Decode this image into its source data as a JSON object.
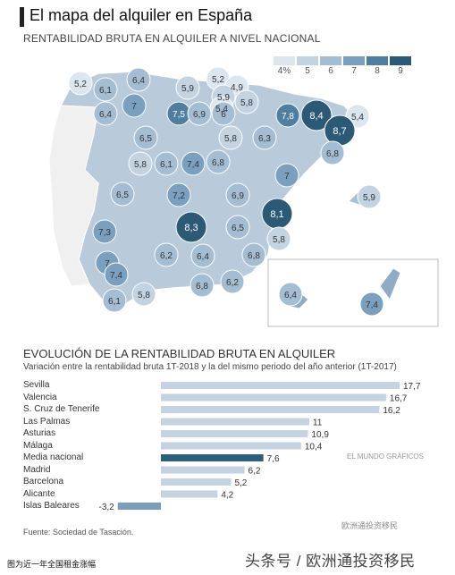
{
  "header": {
    "title": "El mapa del alquiler en España",
    "subtitle": "RENTABILIDAD BRUTA EN ALQUILER A NIVEL NACIONAL"
  },
  "legend": {
    "labels": [
      "4%",
      "5",
      "6",
      "7",
      "8",
      "9"
    ],
    "colors": [
      "#dce6ef",
      "#c3d3e2",
      "#a4bdd3",
      "#7b9fbe",
      "#4f7e9f",
      "#2c5976"
    ]
  },
  "map_values": [
    {
      "label": "5,2",
      "value": 5.2
    },
    {
      "label": "6,1",
      "value": 6.1
    },
    {
      "label": "6,4",
      "value": 6.4
    },
    {
      "label": "5,9",
      "value": 5.9
    },
    {
      "label": "5,2",
      "value": 5.2
    },
    {
      "label": "4,9",
      "value": 4.9
    },
    {
      "label": "5,9",
      "value": 5.9
    },
    {
      "label": "5,4",
      "value": 5.4
    },
    {
      "label": "6,4",
      "value": 6.4
    },
    {
      "label": "7",
      "value": 7.0
    },
    {
      "label": "7,5",
      "value": 7.5
    },
    {
      "label": "6,9",
      "value": 6.9
    },
    {
      "label": "6",
      "value": 6.0
    },
    {
      "label": "5,8",
      "value": 5.8
    },
    {
      "label": "7,8",
      "value": 7.8
    },
    {
      "label": "8,4",
      "value": 8.4
    },
    {
      "label": "5,4",
      "value": 5.4
    },
    {
      "label": "8,7",
      "value": 8.7
    },
    {
      "label": "6,5",
      "value": 6.5
    },
    {
      "label": "5,8",
      "value": 5.8
    },
    {
      "label": "6,3",
      "value": 6.3
    },
    {
      "label": "6,8",
      "value": 6.8
    },
    {
      "label": "5,8",
      "value": 5.8
    },
    {
      "label": "6,1",
      "value": 6.1
    },
    {
      "label": "7,4",
      "value": 7.4
    },
    {
      "label": "6,8",
      "value": 6.8
    },
    {
      "label": "7",
      "value": 7.0
    },
    {
      "label": "6,5",
      "value": 6.5
    },
    {
      "label": "7,2",
      "value": 7.2
    },
    {
      "label": "6,9",
      "value": 6.9
    },
    {
      "label": "8,1",
      "value": 8.1
    },
    {
      "label": "5,9",
      "value": 5.9
    },
    {
      "label": "7,3",
      "value": 7.3
    },
    {
      "label": "8,3",
      "value": 8.3
    },
    {
      "label": "6,5",
      "value": 6.5
    },
    {
      "label": "5,8",
      "value": 5.8
    },
    {
      "label": "7",
      "value": 7.0
    },
    {
      "label": "6,2",
      "value": 6.2
    },
    {
      "label": "6,4",
      "value": 6.4
    },
    {
      "label": "6,8",
      "value": 6.8
    },
    {
      "label": "7,4",
      "value": 7.4
    },
    {
      "label": "5,8",
      "value": 5.8
    },
    {
      "label": "6,8",
      "value": 6.8
    },
    {
      "label": "6,2",
      "value": 6.2
    },
    {
      "label": "6,1",
      "value": 6.1
    },
    {
      "label": "6,4",
      "value": 6.4
    },
    {
      "label": "7,4",
      "value": 7.4
    }
  ],
  "section2": {
    "title": "EVOLUCIÓN DE LA RENTABILIDAD BRUTA EN ALQUILER",
    "subtitle": "Variación entre la rentabilidad bruta 1T-2018 y la del mismo periodo del año anterior (1T-2017)"
  },
  "chart_data": {
    "type": "bar",
    "orientation": "horizontal",
    "categories": [
      "Sevilla",
      "Valencia",
      "S. Cruz de Tenerife",
      "Las Palmas",
      "Asturias",
      "Málaga",
      "Media nacional",
      "Madrid",
      "Barcelona",
      "Alicante",
      "Islas Baleares"
    ],
    "value_labels": [
      "17,7",
      "16,7",
      "16,2",
      "11",
      "10,9",
      "10,4",
      "7,6",
      "6,2",
      "5,2",
      "4,2",
      "-3,2"
    ],
    "values": [
      17.7,
      16.7,
      16.2,
      11,
      10.9,
      10.4,
      7.6,
      6.2,
      5.2,
      4.2,
      -3.2
    ],
    "highlight": "Media nacional",
    "colors": {
      "bar": "#c4d2e1",
      "highlight": "#2f5d7c",
      "negative": "#7d9ebb"
    },
    "xlim": [
      -3.2,
      17.7
    ]
  },
  "footer": {
    "source": "Fuente: Sociedad de Tasación.",
    "credit": "EL MUNDO GRÁFICOS",
    "watermark": "欧洲通投资移民",
    "caption": "图为近一年全国租金涨幅",
    "platform": "头条号 / 欧洲通投资移民"
  }
}
